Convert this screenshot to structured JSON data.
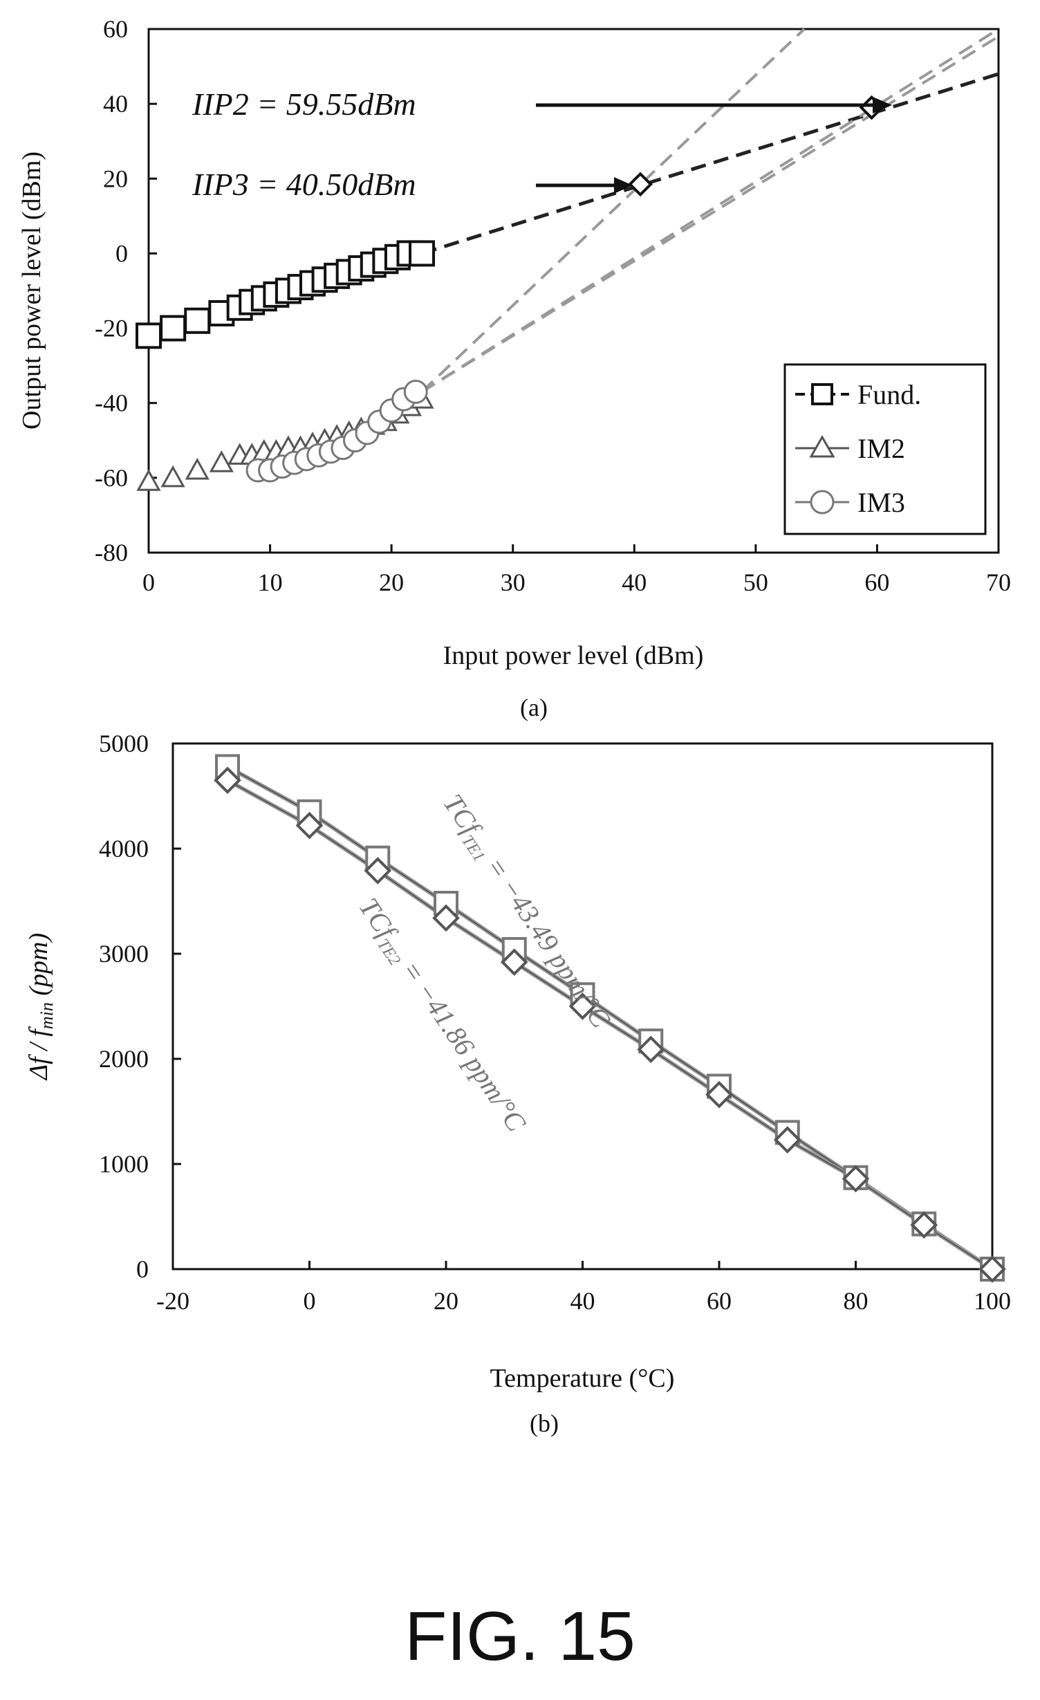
{
  "figure_label": "FIG. 15",
  "chart_data": [
    {
      "type": "scatter",
      "caption": "(a)",
      "xlabel": "Input power level (dBm)",
      "ylabel": "Output power level (dBm)",
      "xlim": [
        0,
        70
      ],
      "ylim": [
        -80,
        60
      ],
      "xticks": [
        0,
        10,
        20,
        30,
        40,
        50,
        60,
        70
      ],
      "yticks": [
        -80,
        -60,
        -40,
        -20,
        0,
        20,
        40,
        60
      ],
      "legend_position": "bottom-right",
      "grid": false,
      "series": [
        {
          "name": "Fund.",
          "marker": "square",
          "x": [
            0,
            2,
            4,
            6,
            7.5,
            8.5,
            9.5,
            10.5,
            11.5,
            12.5,
            13.5,
            14.5,
            15.5,
            16.5,
            17.5,
            18.5,
            19.5,
            20.5,
            21.5,
            22.5
          ],
          "y": [
            -22,
            -20,
            -18,
            -16,
            -14.5,
            -13,
            -12,
            -11,
            -10,
            -9,
            -8,
            -7,
            -6,
            -5,
            -4,
            -3,
            -2,
            -1,
            0,
            0
          ]
        },
        {
          "name": "IM2",
          "marker": "triangle",
          "x": [
            0,
            2,
            4,
            6,
            7.5,
            8.5,
            9.5,
            10.5,
            11.5,
            12.5,
            13.5,
            14.5,
            15.5,
            16.5,
            17.5,
            18.5,
            19.5,
            20.5,
            21.5,
            22.5
          ],
          "y": [
            -61,
            -60,
            -58,
            -56,
            -54,
            -54,
            -53,
            -53,
            -52,
            -52,
            -51,
            -50,
            -49,
            -48,
            -47,
            -46,
            -45,
            -43,
            -41,
            -39
          ]
        },
        {
          "name": "IM3",
          "marker": "circle",
          "x": [
            9,
            10,
            11,
            12,
            13,
            14,
            15,
            16,
            17,
            18,
            19,
            20,
            21,
            22
          ],
          "y": [
            -58,
            -58,
            -57,
            -56,
            -55,
            -54,
            -53,
            -52,
            -50,
            -48,
            -45,
            -42,
            -39,
            -37
          ]
        }
      ],
      "extrapolation_lines": [
        {
          "series": "Fund.",
          "style": "dashed",
          "color": "#222222",
          "from": [
            22.5,
            0
          ],
          "to": [
            70,
            48
          ]
        },
        {
          "series": "IM2",
          "style": "dashed",
          "color": "#999999",
          "from": [
            22.5,
            -37
          ],
          "to": [
            70,
            58
          ]
        },
        {
          "series": "IM2",
          "style": "dashed",
          "color": "#999999",
          "from": [
            22.5,
            -37
          ],
          "to": [
            54,
            60
          ]
        },
        {
          "series": "IM3",
          "style": "dashed",
          "color": "#999999",
          "from": [
            22.5,
            -37
          ],
          "to": [
            70,
            60
          ]
        }
      ],
      "intercepts": [
        {
          "x": 59.55,
          "y": 39,
          "marker": "diamond"
        },
        {
          "x": 40.5,
          "y": 18.5,
          "marker": "diamond"
        }
      ],
      "annotations": [
        {
          "text": "IIP2 = 59.55dBm",
          "arrow_to": [
            59.55,
            39
          ]
        },
        {
          "text": "IIP3 = 40.50dBm",
          "arrow_to": [
            40.5,
            18.5
          ]
        }
      ]
    },
    {
      "type": "line",
      "caption": "(b)",
      "xlabel": "Temperature (°C)",
      "ylabel": "Δf / f_min (ppm)",
      "xlim": [
        -20,
        100
      ],
      "ylim": [
        0,
        5000
      ],
      "xticks": [
        -20,
        0,
        20,
        40,
        60,
        80,
        100
      ],
      "yticks": [
        0,
        1000,
        2000,
        3000,
        4000,
        5000
      ],
      "grid": false,
      "x": [
        -12,
        0,
        10,
        20,
        30,
        40,
        50,
        60,
        70,
        80,
        90,
        100
      ],
      "series": [
        {
          "marker": "square",
          "color": "#777777",
          "y": [
            4780,
            4350,
            3910,
            3480,
            3040,
            2610,
            2170,
            1740,
            1300,
            870,
            430,
            0
          ]
        },
        {
          "marker": "diamond",
          "color": "#555555",
          "y": [
            4650,
            4220,
            3790,
            3340,
            2920,
            2500,
            2090,
            1660,
            1230,
            860,
            420,
            0
          ]
        }
      ],
      "annotations": [
        {
          "text": "TCf_TE1 = −43.49 ppm/°C"
        },
        {
          "text": "TCf_TE2 = −41.86 ppm/°C"
        }
      ]
    }
  ],
  "labels": {
    "iip2": {
      "main": "IIP2 = 59.55dBm"
    },
    "iip3": {
      "main": "IIP3 = 40.50dBm"
    },
    "te1": {
      "pre": "TCf",
      "sub": "TE1",
      "post": " = −43.49 ppm/°C"
    },
    "te2": {
      "pre": "TCf",
      "sub": "TE2",
      "post": " = −41.86 ppm/°C"
    },
    "ylabel_b": {
      "pre": "Δf / f",
      "sub": "min",
      "post": " (ppm)"
    }
  }
}
